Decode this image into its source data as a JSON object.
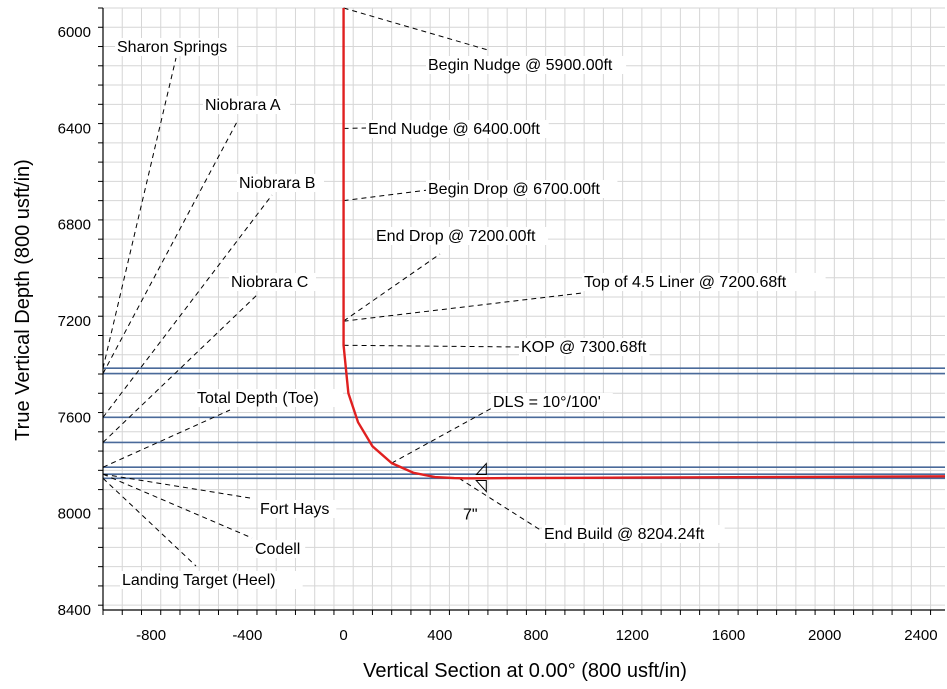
{
  "chart_data": {
    "type": "line",
    "title": "",
    "xlabel": "Vertical Section at 0.00° (800 usft/in)",
    "ylabel": "True Vertical Depth (800 usft/in)",
    "xlim": [
      -1000,
      2500
    ],
    "ylim": [
      5900,
      8400
    ],
    "y_inverted": true,
    "grid": true,
    "x_ticks": [
      "-800",
      "-400",
      "0",
      "400",
      "800",
      "1200",
      "1600",
      "2000",
      "2400"
    ],
    "y_ticks": [
      "6000",
      "6400",
      "6800",
      "7200",
      "7600",
      "8000",
      "8400"
    ],
    "colors": {
      "wellpath": "#e02020",
      "formation": "#4a6a9a",
      "grid": "#c8c8c8"
    },
    "series": [
      {
        "x": [
          0,
          0,
          0,
          0,
          0,
          0,
          20,
          60,
          120,
          200,
          290,
          380,
          460,
          500,
          560,
          700,
          1000,
          1500,
          2000,
          2500
        ],
        "y": [
          5900,
          6400,
          6700,
          7200,
          7200.68,
          7300.68,
          7500,
          7620,
          7720,
          7790,
          7830,
          7848,
          7852,
          7853,
          7853,
          7852,
          7851,
          7849,
          7847,
          7845
        ]
      }
    ],
    "formation_tops_tvd": [
      7396,
      7418,
      7600,
      7704,
      7807,
      7836,
      7853
    ],
    "casing": {
      "x": 560,
      "y": 7850,
      "label": "7\""
    },
    "annotations": [
      {
        "text": "Begin Nudge @ 5900.00ft",
        "target": [
          0,
          5900
        ]
      },
      {
        "text": "End Nudge @ 6400.00ft",
        "target": [
          0,
          6400
        ]
      },
      {
        "text": "Begin Drop @ 6700.00ft",
        "target": [
          0,
          6700
        ]
      },
      {
        "text": "End Drop @ 7200.00ft",
        "target": [
          0,
          7200
        ]
      },
      {
        "text": "Top of 4.5 Liner @ 7200.68ft",
        "target": [
          0,
          7200.68
        ]
      },
      {
        "text": "KOP @ 7300.68ft",
        "target": [
          0,
          7300.68
        ]
      },
      {
        "text": "DLS = 10°/100'",
        "target": [
          200,
          7790
        ]
      },
      {
        "text": "End Build @ 8204.24ft",
        "target": [
          480,
          7853
        ]
      }
    ],
    "formations": [
      {
        "text": "Sharon Springs",
        "target": [
          -1000,
          7396
        ]
      },
      {
        "text": "Niobrara A",
        "target": [
          -1000,
          7418
        ]
      },
      {
        "text": "Niobrara B",
        "target": [
          -1000,
          7600
        ]
      },
      {
        "text": "Niobrara C",
        "target": [
          -1000,
          7704
        ]
      },
      {
        "text": "Total Depth (Toe)",
        "target": [
          -1000,
          7807
        ]
      },
      {
        "text": "Fort Hays",
        "target": [
          -1000,
          7836
        ]
      },
      {
        "text": "Codell",
        "target": [
          -1000,
          7836
        ]
      },
      {
        "text": "Landing Target (Heel)",
        "target": [
          -1000,
          7853
        ]
      }
    ]
  }
}
